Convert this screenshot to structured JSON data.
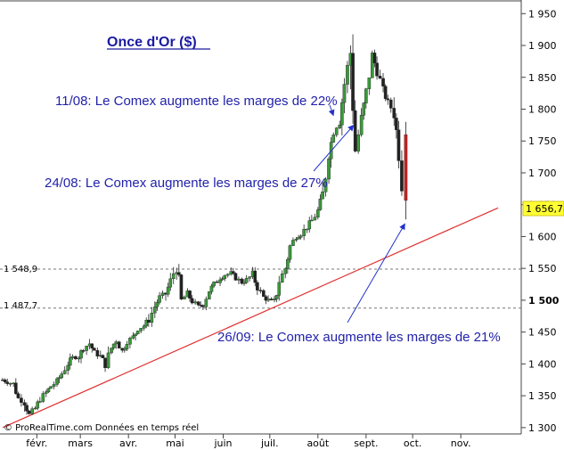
{
  "chart_data": {
    "type": "candlestick",
    "title": "Once d'Or ($)",
    "x_ticks": [
      "févr.",
      "mars",
      "avr.",
      "mai",
      "juin",
      "juil.",
      "août",
      "sept.",
      "oct.",
      "nov."
    ],
    "y_ticks": [
      "1 950",
      "1 900",
      "1 850",
      "1 800",
      "1 750",
      "1 700",
      "1 650",
      "1 600",
      "1 550",
      "1 500",
      "1 450",
      "1 400",
      "1 350",
      "1 300"
    ],
    "y_tick_values": [
      1950,
      1900,
      1850,
      1800,
      1750,
      1700,
      1650,
      1600,
      1550,
      1500,
      1450,
      1400,
      1350,
      1300
    ],
    "ylim": [
      1290,
      1970
    ],
    "last_price": 1656.78,
    "last_price_label": "1 656,78",
    "bold_level_label": "1 500",
    "levels": [
      {
        "value": 1548.9,
        "label": "1 548,9"
      },
      {
        "value": 1487.7,
        "label": "1 487,7"
      }
    ],
    "trendline": {
      "start": {
        "date": "2011-01-10",
        "value": 1300
      },
      "end": {
        "date": "2011-11-25",
        "value": 1645
      }
    },
    "annotations": [
      {
        "text": "11/08: Le Comex augmente les marges de 22%",
        "date": "2011-08-11",
        "value": 1790
      },
      {
        "text": "24/08: Le Comex augmente les marges de 27%",
        "date": "2011-08-24",
        "value": 1775
      },
      {
        "text": "26/09: Le Comex augmente les marges de 21%",
        "date": "2011-09-26",
        "value": 1620
      }
    ],
    "credit": "© ProRealTime.com  Données en temps réel",
    "series": [
      {
        "date": "2011-01-10",
        "value": 1375
      },
      {
        "date": "2011-01-13",
        "value": 1372
      },
      {
        "date": "2011-01-17",
        "value": 1368
      },
      {
        "date": "2011-01-20",
        "value": 1346
      },
      {
        "date": "2011-01-24",
        "value": 1340
      },
      {
        "date": "2011-01-27",
        "value": 1320
      },
      {
        "date": "2011-01-31",
        "value": 1330
      },
      {
        "date": "2011-02-03",
        "value": 1345
      },
      {
        "date": "2011-02-07",
        "value": 1355
      },
      {
        "date": "2011-02-10",
        "value": 1365
      },
      {
        "date": "2011-02-14",
        "value": 1372
      },
      {
        "date": "2011-02-17",
        "value": 1385
      },
      {
        "date": "2011-02-21",
        "value": 1400
      },
      {
        "date": "2011-02-24",
        "value": 1410
      },
      {
        "date": "2011-02-28",
        "value": 1412
      },
      {
        "date": "2011-03-03",
        "value": 1425
      },
      {
        "date": "2011-03-07",
        "value": 1432
      },
      {
        "date": "2011-03-10",
        "value": 1418
      },
      {
        "date": "2011-03-14",
        "value": 1412
      },
      {
        "date": "2011-03-17",
        "value": 1400
      },
      {
        "date": "2011-03-21",
        "value": 1425
      },
      {
        "date": "2011-03-24",
        "value": 1438
      },
      {
        "date": "2011-03-28",
        "value": 1420
      },
      {
        "date": "2011-03-31",
        "value": 1435
      },
      {
        "date": "2011-04-04",
        "value": 1442
      },
      {
        "date": "2011-04-07",
        "value": 1455
      },
      {
        "date": "2011-04-11",
        "value": 1460
      },
      {
        "date": "2011-04-14",
        "value": 1470
      },
      {
        "date": "2011-04-18",
        "value": 1490
      },
      {
        "date": "2011-04-21",
        "value": 1505
      },
      {
        "date": "2011-04-25",
        "value": 1510
      },
      {
        "date": "2011-04-28",
        "value": 1530
      },
      {
        "date": "2011-05-02",
        "value": 1555
      },
      {
        "date": "2011-05-05",
        "value": 1500
      },
      {
        "date": "2011-05-09",
        "value": 1510
      },
      {
        "date": "2011-05-12",
        "value": 1498
      },
      {
        "date": "2011-05-16",
        "value": 1490
      },
      {
        "date": "2011-05-19",
        "value": 1495
      },
      {
        "date": "2011-05-23",
        "value": 1515
      },
      {
        "date": "2011-05-26",
        "value": 1525
      },
      {
        "date": "2011-05-30",
        "value": 1535
      },
      {
        "date": "2011-06-02",
        "value": 1540
      },
      {
        "date": "2011-06-06",
        "value": 1542
      },
      {
        "date": "2011-06-09",
        "value": 1535
      },
      {
        "date": "2011-06-13",
        "value": 1528
      },
      {
        "date": "2011-06-16",
        "value": 1532
      },
      {
        "date": "2011-06-20",
        "value": 1540
      },
      {
        "date": "2011-06-23",
        "value": 1520
      },
      {
        "date": "2011-06-27",
        "value": 1505
      },
      {
        "date": "2011-06-30",
        "value": 1500
      },
      {
        "date": "2011-07-04",
        "value": 1495
      },
      {
        "date": "2011-07-07",
        "value": 1530
      },
      {
        "date": "2011-07-11",
        "value": 1550
      },
      {
        "date": "2011-07-14",
        "value": 1585
      },
      {
        "date": "2011-07-18",
        "value": 1600
      },
      {
        "date": "2011-07-21",
        "value": 1605
      },
      {
        "date": "2011-07-25",
        "value": 1615
      },
      {
        "date": "2011-07-28",
        "value": 1625
      },
      {
        "date": "2011-08-01",
        "value": 1640
      },
      {
        "date": "2011-08-04",
        "value": 1665
      },
      {
        "date": "2011-08-08",
        "value": 1730
      },
      {
        "date": "2011-08-11",
        "value": 1765
      },
      {
        "date": "2011-08-15",
        "value": 1785
      },
      {
        "date": "2011-08-18",
        "value": 1840
      },
      {
        "date": "2011-08-22",
        "value": 1890
      },
      {
        "date": "2011-08-25",
        "value": 1735
      },
      {
        "date": "2011-08-29",
        "value": 1785
      },
      {
        "date": "2011-09-01",
        "value": 1825
      },
      {
        "date": "2011-09-05",
        "value": 1885
      },
      {
        "date": "2011-09-08",
        "value": 1860
      },
      {
        "date": "2011-09-12",
        "value": 1830
      },
      {
        "date": "2011-09-15",
        "value": 1810
      },
      {
        "date": "2011-09-19",
        "value": 1795
      },
      {
        "date": "2011-09-22",
        "value": 1735
      },
      {
        "date": "2011-09-26",
        "value": 1640
      }
    ]
  }
}
